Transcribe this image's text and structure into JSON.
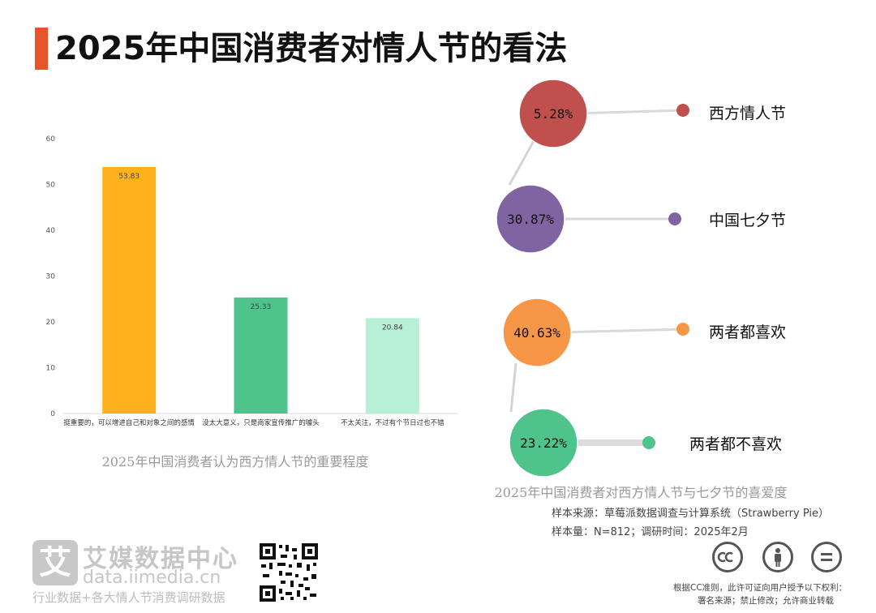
{
  "title": "2025年中国消费者对情人节的看法",
  "bar_caption": "2025年中国消费者认为西方情人节的重要程度",
  "bubble_caption": "2025年中国消费者对西方情人节与七夕节的喜爱度",
  "source": {
    "line1": "样本来源：草莓派数据调查与计算系统（Strawberry Pie）",
    "line2": "样本量：N=812；调研时间：2025年2月"
  },
  "logo": {
    "mark": "艾",
    "name": "艾媒数据中心",
    "url": "data.iimedia.cn",
    "tagline": "行业数据+各大情人节消费调研数据"
  },
  "license": {
    "line1": "根据CC准则，此许可证向用户授予以下权利：",
    "line2": "署名来源；禁止修改；允许商业转载"
  },
  "colors": {
    "accent": "#e8542a",
    "bar1": "#fdb21d",
    "bar2": "#4ec38c",
    "bar3": "#b8efd7",
    "bubble_red": "#c0504d",
    "bubble_purple": "#8064a2",
    "bubble_orange": "#f79646",
    "bubble_green": "#4ec38c"
  },
  "chart_data": [
    {
      "type": "bar",
      "categories": [
        "挺重要的，可以增进自己和对象之间的感情",
        "没太大意义，只是商家宣传推广的噱头",
        "不太关注，不过有个节日过也不错"
      ],
      "values": [
        53.83,
        25.33,
        20.84
      ],
      "value_labels": [
        "53.83",
        "25.33",
        "20.84"
      ],
      "ylim": [
        0,
        60
      ],
      "yticks": [
        0,
        10,
        20,
        30,
        40,
        50,
        60
      ],
      "title": "2025年中国消费者认为西方情人节的重要程度",
      "xlabel": "",
      "ylabel": ""
    },
    {
      "type": "bubble",
      "categories": [
        "西方情人节",
        "中国七夕节",
        "两者都喜欢",
        "两者都不喜欢"
      ],
      "values": [
        5.28,
        30.87,
        40.63,
        23.22
      ],
      "value_labels": [
        "5.28%",
        "30.87%",
        "40.63%",
        "23.22%"
      ],
      "title": "2025年中国消费者对西方情人节与七夕节的喜爱度"
    }
  ]
}
